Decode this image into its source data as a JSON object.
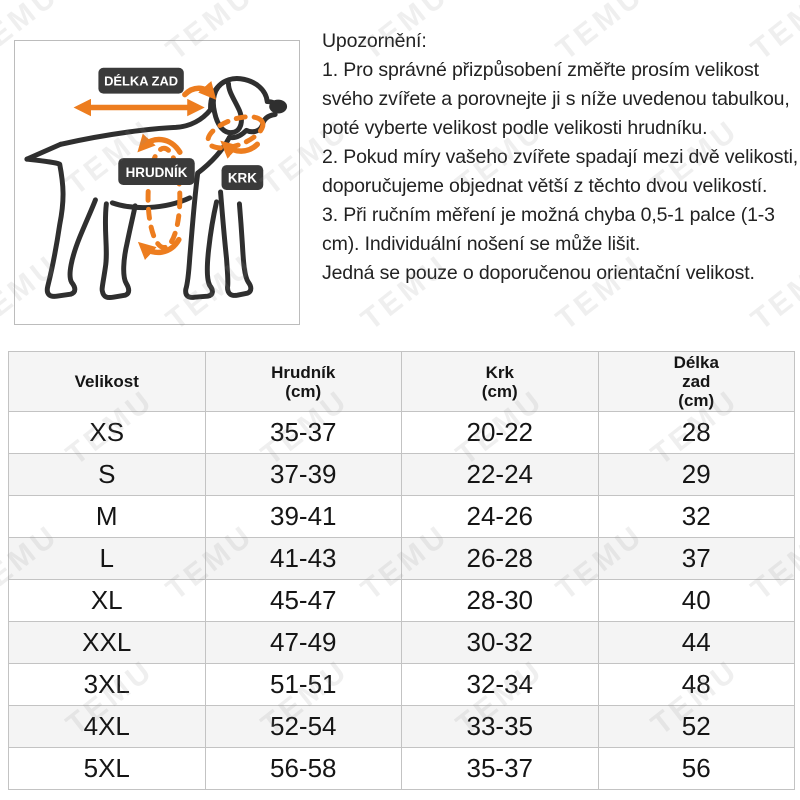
{
  "diagram": {
    "labels": {
      "back_length": "DÉLKA ZAD",
      "chest": "HRUDNÍK",
      "neck": "KRK"
    },
    "colors": {
      "accent_orange": "#ED7D1F",
      "label_background": "#3A3A3A",
      "outline": "#2F2F2F"
    }
  },
  "notice": {
    "title": "Upozornění:",
    "items": [
      "1. Pro správné přizpůsobení změřte prosím velikost svého zvířete a porovnejte ji s níže uvedenou tabulkou, poté vyberte velikost podle velikosti hrudníku.",
      "2. Pokud míry vašeho zvířete spadají mezi dvě velikosti, doporučujeme objednat větší z těchto dvou velikostí.",
      "3. Při ručním měření je možná chyba 0,5-1 palce (1-3 cm). Individuální nošení se může lišit."
    ],
    "footer": "Jedná se pouze o doporučenou orientační velikost."
  },
  "table": {
    "headers": [
      "Velikost",
      "Hrudník\n(cm)",
      "Krk\n(cm)",
      "Délka\nzad\n(cm)"
    ],
    "rows": [
      {
        "size": "XS",
        "chest": "35-37",
        "neck": "20-22",
        "back": "28"
      },
      {
        "size": "S",
        "chest": "37-39",
        "neck": "22-24",
        "back": "29"
      },
      {
        "size": "M",
        "chest": "39-41",
        "neck": "24-26",
        "back": "32"
      },
      {
        "size": "L",
        "chest": "41-43",
        "neck": "26-28",
        "back": "37"
      },
      {
        "size": "XL",
        "chest": "45-47",
        "neck": "28-30",
        "back": "40"
      },
      {
        "size": "XXL",
        "chest": "47-49",
        "neck": "30-32",
        "back": "44"
      },
      {
        "size": "3XL",
        "chest": "51-51",
        "neck": "32-34",
        "back": "48"
      },
      {
        "size": "4XL",
        "chest": "52-54",
        "neck": "33-35",
        "back": "52"
      },
      {
        "size": "5XL",
        "chest": "56-58",
        "neck": "35-37",
        "back": "56"
      }
    ],
    "stripe_color": "#F4F4F4",
    "border_color": "#C3C3C3"
  },
  "watermark": {
    "text": "TEMU"
  }
}
